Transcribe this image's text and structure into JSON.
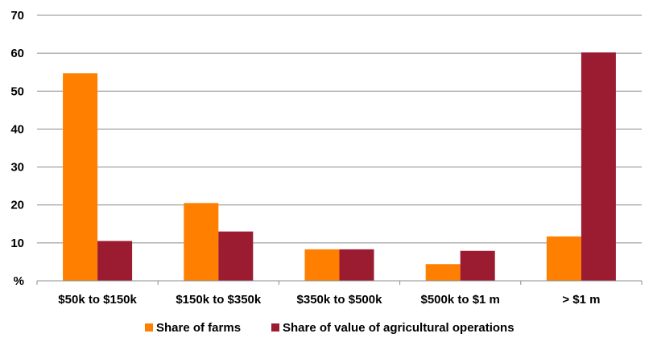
{
  "chart_data": {
    "type": "bar",
    "categories": [
      "$50k to $150k",
      "$150k to $350k",
      "$350k to $500k",
      "$500k to $1 m",
      "> $1 m"
    ],
    "series": [
      {
        "name": "Share of farms",
        "color": "#ff7f00",
        "values": [
          54.7,
          20.5,
          8.3,
          4.4,
          11.7
        ]
      },
      {
        "name": "Share of value of agricultural operations",
        "color": "#9b1b30",
        "values": [
          10.5,
          13.0,
          8.3,
          7.9,
          60.2
        ]
      }
    ],
    "y_ticks": [
      "%",
      "10",
      "20",
      "30",
      "40",
      "50",
      "60",
      "70"
    ],
    "ylim": [
      0,
      70
    ],
    "grid": true,
    "legend_position": "bottom-center"
  }
}
